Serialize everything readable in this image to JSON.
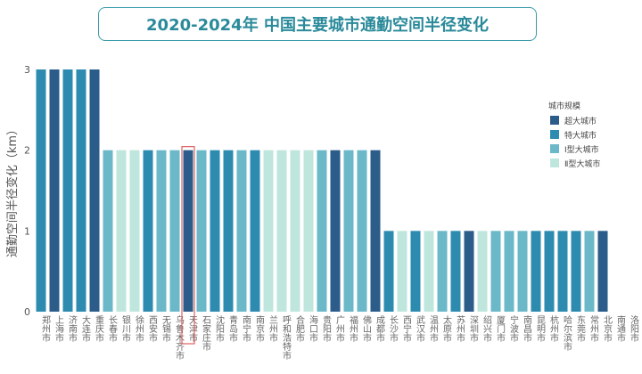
{
  "chart_data": {
    "type": "bar",
    "title": "2020-2024年 中国主要城市通勤空间半径变化",
    "ylabel": "通勤空间半径变化（km）",
    "xlabel": "",
    "ylim": [
      0,
      3
    ],
    "yticks": [
      0,
      1,
      2,
      3
    ],
    "highlighted": "天津市",
    "legend": {
      "title": "城市规模",
      "placement": "right",
      "entries": [
        "超大城市",
        "特大城市",
        "Ⅰ型大城市",
        "Ⅱ型大城市"
      ]
    },
    "colors": {
      "超大城市": "#2b5c8a",
      "特大城市": "#2e8bb0",
      "Ⅰ型大城市": "#6bb8c9",
      "Ⅱ型大城市": "#bfe6dc"
    },
    "categories": [
      "郑州市",
      "上海市",
      "济南市",
      "大连市",
      "重庆市",
      "长春市",
      "银川市",
      "徐州市",
      "西安市",
      "无锡市",
      "乌鲁木齐市",
      "天津市",
      "石家庄市",
      "沈阳市",
      "青岛市",
      "南宁市",
      "南京市",
      "兰州市",
      "呼和浩特市",
      "合肥市",
      "海口市",
      "贵阳市",
      "广州市",
      "福州市",
      "佛山市",
      "成都市",
      "长沙市",
      "西宁市",
      "武汉市",
      "温州市",
      "太原市",
      "苏州市",
      "深圳市",
      "绍兴市",
      "厦门市",
      "宁波市",
      "南昌市",
      "昆明市",
      "杭州市",
      "哈尔滨市",
      "东莞市",
      "常州市",
      "北京市",
      "南通市",
      "洛阳市"
    ],
    "values": [
      3,
      3,
      3,
      3,
      3,
      2,
      2,
      2,
      2,
      2,
      2,
      2,
      2,
      2,
      2,
      2,
      2,
      2,
      2,
      2,
      2,
      2,
      2,
      2,
      2,
      2,
      1,
      1,
      1,
      1,
      1,
      1,
      1,
      1,
      1,
      1,
      1,
      1,
      1,
      1,
      1,
      1,
      1,
      0,
      0
    ],
    "scale": [
      "特大城市",
      "超大城市",
      "特大城市",
      "特大城市",
      "超大城市",
      "Ⅰ型大城市",
      "Ⅱ型大城市",
      "Ⅱ型大城市",
      "特大城市",
      "Ⅰ型大城市",
      "Ⅰ型大城市",
      "超大城市",
      "Ⅰ型大城市",
      "特大城市",
      "特大城市",
      "Ⅰ型大城市",
      "特大城市",
      "Ⅱ型大城市",
      "Ⅱ型大城市",
      "Ⅱ型大城市",
      "Ⅱ型大城市",
      "Ⅰ型大城市",
      "超大城市",
      "Ⅰ型大城市",
      "Ⅰ型大城市",
      "超大城市",
      "特大城市",
      "Ⅱ型大城市",
      "特大城市",
      "Ⅱ型大城市",
      "Ⅰ型大城市",
      "特大城市",
      "超大城市",
      "Ⅱ型大城市",
      "Ⅰ型大城市",
      "Ⅰ型大城市",
      "Ⅰ型大城市",
      "特大城市",
      "特大城市",
      "特大城市",
      "特大城市",
      "Ⅰ型大城市",
      "超大城市",
      "Ⅱ型大城市",
      "Ⅱ型大城市"
    ]
  }
}
